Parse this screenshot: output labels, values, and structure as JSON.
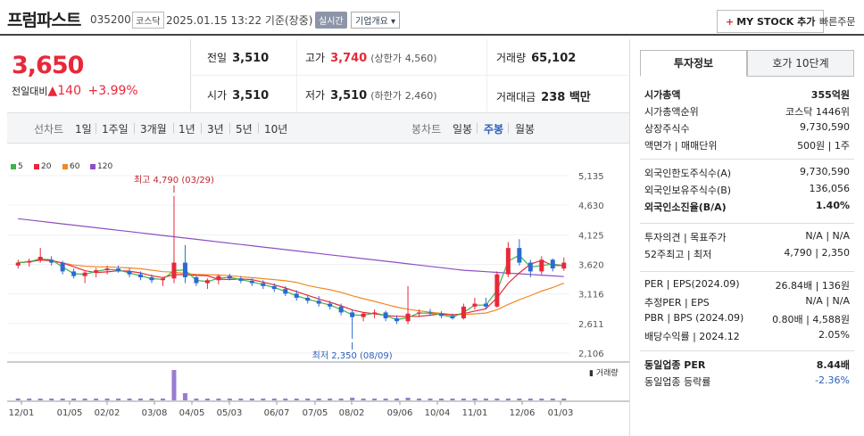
{
  "header": {
    "name": "프럼파스트",
    "code": "035200",
    "market": "코스닥",
    "timestamp": "2025.01.15 13:22  기준(장중)",
    "realtime": "실시간",
    "company": "기업개요 ▾",
    "mystock": "MY STOCK 추가",
    "quick_order": "빠른주문"
  },
  "price": {
    "current": "3,650",
    "change_label": "전일대비",
    "change_arrow": "▲",
    "change": "140",
    "change_pct": "+3.99%"
  },
  "quote": {
    "prev_label": "전일",
    "prev": "3,510",
    "high_label": "고가",
    "high": "3,740",
    "upper_label": "(상한가",
    "upper": "4,560)",
    "volume_label": "거래량",
    "volume": "65,102",
    "open_label": "시가",
    "open": "3,510",
    "low_label": "저가",
    "low": "3,510",
    "lower_label": "(하한가",
    "lower": "2,460)",
    "amount_label": "거래대금",
    "amount": "238 백만"
  },
  "toolbar": {
    "line_chart": "선차트",
    "periods": [
      "1일",
      "1주일",
      "3개월",
      "1년",
      "3년",
      "5년",
      "10년"
    ],
    "candle_chart": "봉차트",
    "candles": [
      "일봉",
      "주봉",
      "월봉"
    ],
    "selected_candle": "주봉"
  },
  "legend": [
    {
      "label": "5",
      "color": "#3bb44a"
    },
    {
      "label": "20",
      "color": "#e8283a"
    },
    {
      "label": "60",
      "color": "#f08a24"
    },
    {
      "label": "120",
      "color": "#8e4fc2"
    }
  ],
  "chart_data": {
    "type": "candlestick",
    "y_ticks": [
      "5,135",
      "4,630",
      "4,125",
      "3,620",
      "3,116",
      "2,611",
      "2,106"
    ],
    "x_ticks": [
      "12/01",
      "01/05",
      "02/02",
      "03/08",
      "04/05",
      "05/03",
      "06/07",
      "07/05",
      "08/02",
      "09/06",
      "10/04",
      "11/01",
      "12/06",
      "01/03"
    ],
    "ylim": [
      2106,
      5135
    ],
    "high_annotation": "최고 4,790 (03/29)",
    "low_annotation": "최저 2,350 (08/09)",
    "volume_label": "거래량"
  },
  "right": {
    "tab_info": "투자정보",
    "tab_ask": "호가 10단계",
    "rows1": [
      {
        "l": "시가총액",
        "v": "355억원",
        "bold": true
      },
      {
        "l": "시가총액순위",
        "v": "코스닥 1446위"
      },
      {
        "l": "상장주식수",
        "v": "9,730,590"
      },
      {
        "l": "액면가 | 매매단위",
        "v": "500원 | 1주"
      }
    ],
    "rows2": [
      {
        "l": "외국인한도주식수(A)",
        "v": "9,730,590"
      },
      {
        "l": "외국인보유주식수(B)",
        "v": "136,056"
      },
      {
        "l": "외국인소진율(B/A)",
        "v": "1.40%",
        "bold": true
      }
    ],
    "rows3": [
      {
        "l": "투자의견 | 목표주가",
        "v": "N/A | N/A"
      },
      {
        "l": "52주최고 | 최저",
        "v": "4,790 | 2,350"
      }
    ],
    "rows4": [
      {
        "l": "PER | EPS(2024.09)",
        "v": "26.84배 | 136원"
      },
      {
        "l": "추정PER | EPS",
        "v": "N/A | N/A"
      },
      {
        "l": "PBR | BPS (2024.09)",
        "v": "0.80배 | 4,588원"
      },
      {
        "l": "배당수익률 | 2024.12",
        "v": "2.05%"
      }
    ],
    "rows5": [
      {
        "l": "동일업종 PER",
        "v": "8.44배",
        "bold": true
      },
      {
        "l": "동일업종 등락률",
        "v": "-2.36%",
        "blue": true
      }
    ]
  }
}
